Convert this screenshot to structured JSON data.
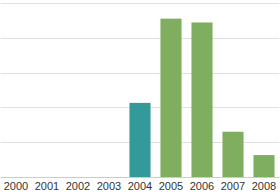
{
  "chart_data": {
    "type": "bar",
    "categories": [
      "2000",
      "2001",
      "2002",
      "2003",
      "2004",
      "2005",
      "2006",
      "2007",
      "2008"
    ],
    "values": [
      0,
      0,
      0,
      0,
      2.13,
      4.55,
      4.44,
      1.3,
      0.63
    ],
    "colors": [
      "#7fae5f",
      "#7fae5f",
      "#7fae5f",
      "#7fae5f",
      "#339999",
      "#7fae5f",
      "#7fae5f",
      "#7fae5f",
      "#7fae5f"
    ],
    "ylim": [
      0,
      5
    ],
    "yticks": [
      0,
      1,
      2,
      3,
      4,
      5
    ],
    "grid": true,
    "tick_labels": "x"
  }
}
